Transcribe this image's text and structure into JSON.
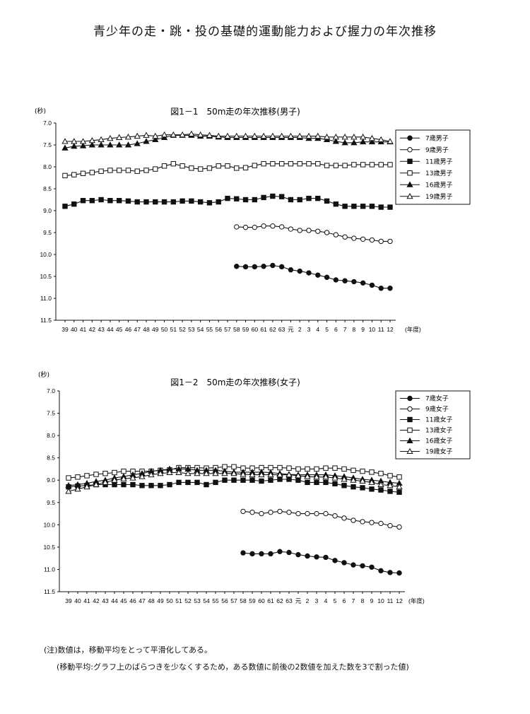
{
  "page": {
    "title": "青少年の走・跳・投の基礎的運動能力および握力の年次推移",
    "note_line1": "(注)数値は，移動平均をとって平滑化してある。",
    "note_line2": "(移動平均:グラフ上のばらつきを少なくするため，ある数値に前後の2数値を加えた数を3で割った値)"
  },
  "chart_data": [
    {
      "type": "line",
      "title": "図1－1　50m走の年次推移(男子)",
      "ylabel": "(秒)",
      "xlabel": "(年度)",
      "ylim": [
        7.0,
        11.5
      ],
      "y_inverted": true,
      "y_ticks": [
        "7.0",
        "7.5",
        "8.0",
        "8.5",
        "9.0",
        "9.5",
        "10.0",
        "10.5",
        "11.0",
        "11.5"
      ],
      "grid": false,
      "legend_position": "right",
      "categories": [
        "39",
        "40",
        "41",
        "42",
        "43",
        "44",
        "45",
        "46",
        "47",
        "48",
        "49",
        "50",
        "51",
        "52",
        "53",
        "54",
        "55",
        "56",
        "57",
        "58",
        "59",
        "60",
        "61",
        "62",
        "63",
        "元",
        "2",
        "3",
        "4",
        "5",
        "6",
        "7",
        "8",
        "9",
        "10",
        "11",
        "12"
      ],
      "series": [
        {
          "name": "7歳男子",
          "marker": "filled-circle",
          "values": [
            null,
            null,
            null,
            null,
            null,
            null,
            null,
            null,
            null,
            null,
            null,
            null,
            null,
            null,
            null,
            null,
            null,
            null,
            null,
            10.27,
            10.28,
            10.28,
            10.27,
            10.25,
            10.28,
            10.35,
            10.38,
            10.42,
            10.47,
            10.52,
            10.58,
            10.6,
            10.62,
            10.65,
            10.7,
            10.77,
            10.77
          ]
        },
        {
          "name": "9歳男子",
          "marker": "open-circle",
          "values": [
            null,
            null,
            null,
            null,
            null,
            null,
            null,
            null,
            null,
            null,
            null,
            null,
            null,
            null,
            null,
            null,
            null,
            null,
            null,
            9.37,
            9.38,
            9.38,
            9.35,
            9.35,
            9.37,
            9.42,
            9.45,
            9.45,
            9.47,
            9.5,
            9.55,
            9.6,
            9.63,
            9.65,
            9.67,
            9.7,
            9.7
          ]
        },
        {
          "name": "11歳男子",
          "marker": "filled-square",
          "values": [
            8.9,
            8.85,
            8.77,
            8.77,
            8.75,
            8.77,
            8.77,
            8.78,
            8.8,
            8.8,
            8.8,
            8.8,
            8.8,
            8.78,
            8.78,
            8.8,
            8.82,
            8.8,
            8.72,
            8.73,
            8.75,
            8.75,
            8.7,
            8.67,
            8.68,
            8.75,
            8.75,
            8.72,
            8.72,
            8.78,
            8.85,
            8.9,
            8.9,
            8.9,
            8.9,
            8.92,
            8.92
          ]
        },
        {
          "name": "13歳男子",
          "marker": "open-square",
          "values": [
            8.2,
            8.18,
            8.15,
            8.13,
            8.1,
            8.08,
            8.08,
            8.08,
            8.1,
            8.08,
            8.05,
            7.98,
            7.93,
            7.98,
            8.03,
            8.05,
            8.03,
            7.98,
            7.98,
            8.03,
            8.02,
            7.97,
            7.93,
            7.93,
            7.93,
            7.93,
            7.93,
            7.93,
            7.93,
            7.97,
            7.97,
            7.97,
            7.95,
            7.95,
            7.95,
            7.95,
            7.95
          ]
        },
        {
          "name": "16歳男子",
          "marker": "filled-triangle",
          "values": [
            7.57,
            7.53,
            7.52,
            7.5,
            7.5,
            7.5,
            7.5,
            7.5,
            7.47,
            7.42,
            7.38,
            7.33,
            7.28,
            7.28,
            7.28,
            7.3,
            7.3,
            7.32,
            7.33,
            7.33,
            7.33,
            7.33,
            7.33,
            7.33,
            7.33,
            7.33,
            7.33,
            7.35,
            7.35,
            7.38,
            7.42,
            7.45,
            7.45,
            7.43,
            7.43,
            7.43,
            7.43
          ]
        },
        {
          "name": "19歳男子",
          "marker": "open-triangle",
          "values": [
            7.42,
            7.42,
            7.42,
            7.4,
            7.38,
            7.35,
            7.33,
            7.32,
            7.3,
            7.28,
            7.3,
            7.27,
            7.27,
            7.27,
            7.25,
            7.27,
            7.28,
            7.3,
            7.3,
            7.3,
            7.3,
            7.3,
            7.3,
            7.3,
            7.3,
            7.3,
            7.3,
            7.3,
            7.3,
            7.32,
            7.32,
            7.32,
            7.32,
            7.32,
            7.35,
            7.38,
            7.42
          ]
        }
      ]
    },
    {
      "type": "line",
      "title": "図1－2　50m走の年次推移(女子)",
      "ylabel": "(秒)",
      "xlabel": "(年度)",
      "ylim": [
        7.0,
        11.5
      ],
      "y_inverted": true,
      "y_ticks": [
        "7.0",
        "7.5",
        "8.0",
        "8.5",
        "9.0",
        "9.5",
        "10.0",
        "10.5",
        "11.0",
        "11.5"
      ],
      "grid": false,
      "legend_position": "top-right",
      "categories": [
        "39",
        "40",
        "41",
        "42",
        "43",
        "44",
        "45",
        "46",
        "47",
        "48",
        "49",
        "50",
        "51",
        "52",
        "53",
        "54",
        "55",
        "56",
        "57",
        "58",
        "59",
        "60",
        "61",
        "62",
        "63",
        "元",
        "2",
        "3",
        "4",
        "5",
        "6",
        "7",
        "8",
        "9",
        "10",
        "11",
        "12"
      ],
      "series": [
        {
          "name": "7歳女子",
          "marker": "filled-circle",
          "values": [
            null,
            null,
            null,
            null,
            null,
            null,
            null,
            null,
            null,
            null,
            null,
            null,
            null,
            null,
            null,
            null,
            null,
            null,
            null,
            10.63,
            10.65,
            10.65,
            10.65,
            10.6,
            10.62,
            10.67,
            10.7,
            10.72,
            10.73,
            10.8,
            10.85,
            10.9,
            10.92,
            10.95,
            11.03,
            11.07,
            11.08
          ]
        },
        {
          "name": "9歳女子",
          "marker": "open-circle",
          "values": [
            null,
            null,
            null,
            null,
            null,
            null,
            null,
            null,
            null,
            null,
            null,
            null,
            null,
            null,
            null,
            null,
            null,
            null,
            null,
            9.7,
            9.72,
            9.75,
            9.72,
            9.7,
            9.72,
            9.75,
            9.75,
            9.75,
            9.75,
            9.8,
            9.85,
            9.9,
            9.93,
            9.95,
            9.97,
            10.02,
            10.05
          ]
        },
        {
          "name": "11歳女子",
          "marker": "filled-square",
          "values": [
            9.15,
            9.13,
            9.12,
            9.1,
            9.1,
            9.1,
            9.1,
            9.1,
            9.12,
            9.12,
            9.12,
            9.1,
            9.05,
            9.05,
            9.05,
            9.1,
            9.05,
            9.0,
            9.0,
            9.0,
            9.0,
            9.02,
            9.0,
            8.98,
            8.98,
            9.0,
            9.05,
            9.05,
            9.05,
            9.08,
            9.12,
            9.15,
            9.17,
            9.2,
            9.22,
            9.25,
            9.27
          ]
        },
        {
          "name": "13歳女子",
          "marker": "open-square",
          "values": [
            8.95,
            8.93,
            8.9,
            8.87,
            8.85,
            8.83,
            8.8,
            8.8,
            8.8,
            8.8,
            8.78,
            8.77,
            8.72,
            8.72,
            8.72,
            8.73,
            8.72,
            8.7,
            8.7,
            8.73,
            8.73,
            8.72,
            8.72,
            8.72,
            8.73,
            8.75,
            8.75,
            8.75,
            8.73,
            8.73,
            8.75,
            8.78,
            8.8,
            8.82,
            8.85,
            8.9,
            8.93
          ]
        },
        {
          "name": "16歳女子",
          "marker": "filled-triangle",
          "values": [
            9.12,
            9.1,
            9.07,
            9.03,
            9.0,
            8.95,
            8.92,
            8.88,
            8.85,
            8.8,
            8.78,
            8.75,
            8.75,
            8.75,
            8.78,
            8.78,
            8.78,
            8.8,
            8.82,
            8.82,
            8.82,
            8.82,
            8.83,
            8.85,
            8.87,
            8.88,
            8.88,
            8.88,
            8.88,
            8.9,
            8.92,
            8.95,
            8.98,
            9.0,
            9.02,
            9.05,
            9.07
          ]
        },
        {
          "name": "19歳女子",
          "marker": "open-triangle",
          "values": [
            9.25,
            9.2,
            9.15,
            9.1,
            9.05,
            9.0,
            8.97,
            8.95,
            8.92,
            8.88,
            8.85,
            8.83,
            8.83,
            8.85,
            8.85,
            8.85,
            8.85,
            8.85,
            8.85,
            8.87,
            8.88,
            8.88,
            8.88,
            8.88,
            8.88,
            8.9,
            8.92,
            8.93,
            8.93,
            8.95,
            8.98,
            9.0,
            9.02,
            9.05,
            9.1,
            9.12,
            9.15
          ]
        }
      ]
    }
  ]
}
